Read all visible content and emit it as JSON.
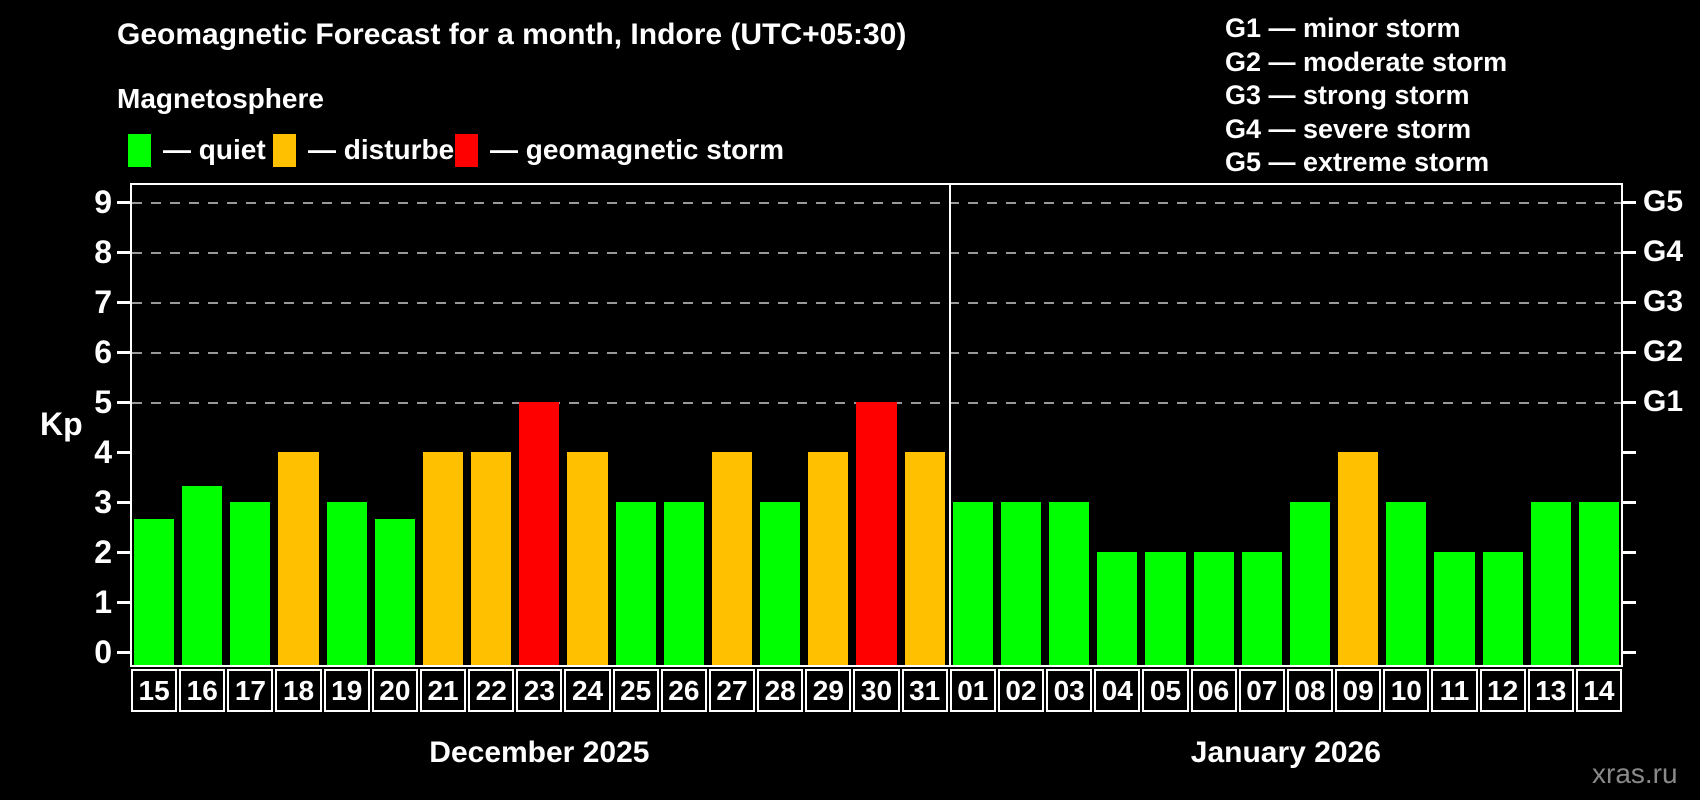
{
  "header": {
    "title": "Geomagnetic Forecast for a month, Indore (UTC+05:30)",
    "subtitle": "Magnetosphere"
  },
  "legend": {
    "items": [
      {
        "key": "quiet",
        "label": "— quiet",
        "color": "#00ff00"
      },
      {
        "key": "disturbed",
        "label": "— disturbed",
        "color": "#ffc000"
      },
      {
        "key": "storm",
        "label": "— geomagnetic storm",
        "color": "#ff0000"
      }
    ]
  },
  "g_legend": {
    "lines": [
      "G1 — minor storm",
      "G2 — moderate storm",
      "G3 — strong storm",
      "G4 — severe storm",
      "G5 — extreme storm"
    ]
  },
  "chart_data": {
    "type": "bar",
    "ylabel": "Kp",
    "ylim": [
      -0.3,
      9.4
    ],
    "y_ticks": [
      0,
      1,
      2,
      3,
      4,
      5,
      6,
      7,
      8,
      9
    ],
    "gridlines_kp": [
      5,
      6,
      7,
      8,
      9
    ],
    "grid_style": "dashed",
    "right_axis_labels": [
      {
        "kp": 5,
        "label": "G1"
      },
      {
        "kp": 6,
        "label": "G2"
      },
      {
        "kp": 7,
        "label": "G3"
      },
      {
        "kp": 8,
        "label": "G4"
      },
      {
        "kp": 9,
        "label": "G5"
      }
    ],
    "colors": {
      "quiet": "#00ff00",
      "disturbed": "#ffc000",
      "storm": "#ff0000"
    },
    "groups": [
      {
        "label": "December 2025",
        "days": 17
      },
      {
        "label": "January 2026",
        "days": 14
      }
    ],
    "points": [
      {
        "day": "15",
        "kp": 2.67,
        "status": "quiet"
      },
      {
        "day": "16",
        "kp": 3.33,
        "status": "quiet"
      },
      {
        "day": "17",
        "kp": 3,
        "status": "quiet"
      },
      {
        "day": "18",
        "kp": 4,
        "status": "disturbed"
      },
      {
        "day": "19",
        "kp": 3,
        "status": "quiet"
      },
      {
        "day": "20",
        "kp": 2.67,
        "status": "quiet"
      },
      {
        "day": "21",
        "kp": 4,
        "status": "disturbed"
      },
      {
        "day": "22",
        "kp": 4,
        "status": "disturbed"
      },
      {
        "day": "23",
        "kp": 5,
        "status": "storm"
      },
      {
        "day": "24",
        "kp": 4,
        "status": "disturbed"
      },
      {
        "day": "25",
        "kp": 3,
        "status": "quiet"
      },
      {
        "day": "26",
        "kp": 3,
        "status": "quiet"
      },
      {
        "day": "27",
        "kp": 4,
        "status": "disturbed"
      },
      {
        "day": "28",
        "kp": 3,
        "status": "quiet"
      },
      {
        "day": "29",
        "kp": 4,
        "status": "disturbed"
      },
      {
        "day": "30",
        "kp": 5,
        "status": "storm"
      },
      {
        "day": "31",
        "kp": 4,
        "status": "disturbed"
      },
      {
        "day": "01",
        "kp": 3,
        "status": "quiet"
      },
      {
        "day": "02",
        "kp": 3,
        "status": "quiet"
      },
      {
        "day": "03",
        "kp": 3,
        "status": "quiet"
      },
      {
        "day": "04",
        "kp": 2,
        "status": "quiet"
      },
      {
        "day": "05",
        "kp": 2,
        "status": "quiet"
      },
      {
        "day": "06",
        "kp": 2,
        "status": "quiet"
      },
      {
        "day": "07",
        "kp": 2,
        "status": "quiet"
      },
      {
        "day": "08",
        "kp": 3,
        "status": "quiet"
      },
      {
        "day": "09",
        "kp": 4,
        "status": "disturbed"
      },
      {
        "day": "10",
        "kp": 3,
        "status": "quiet"
      },
      {
        "day": "11",
        "kp": 2,
        "status": "quiet"
      },
      {
        "day": "12",
        "kp": 2,
        "status": "quiet"
      },
      {
        "day": "13",
        "kp": 3,
        "status": "quiet"
      },
      {
        "day": "14",
        "kp": 3,
        "status": "quiet"
      }
    ]
  },
  "watermark": "xras.ru"
}
